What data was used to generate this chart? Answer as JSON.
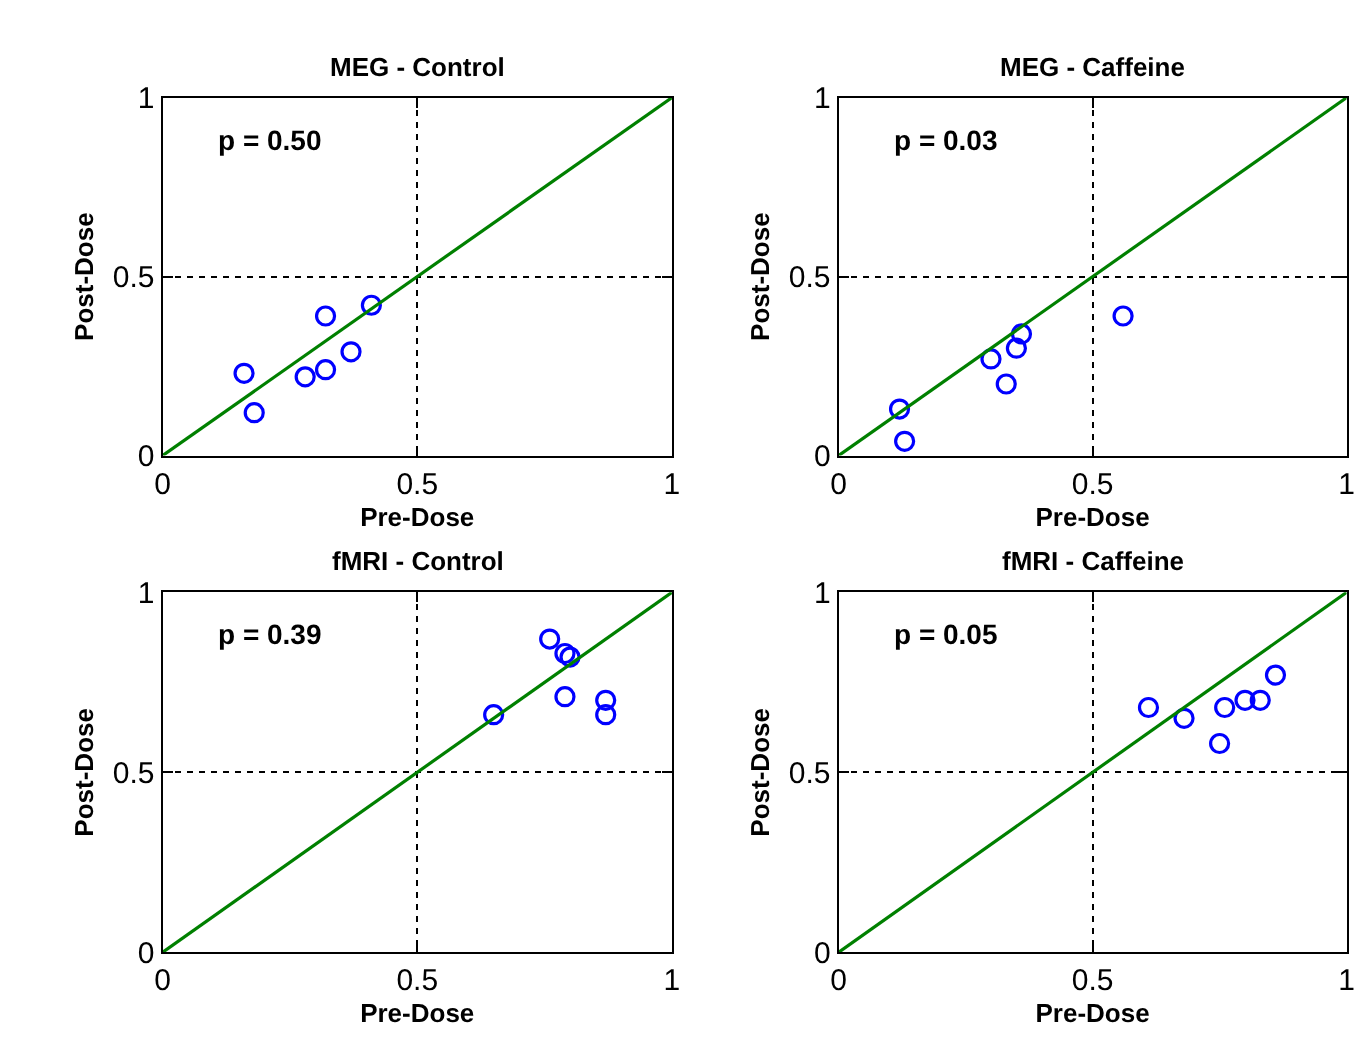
{
  "chart_data": [
    {
      "type": "scatter",
      "title": "MEG - Control",
      "xlabel": "Pre-Dose",
      "ylabel": "Post-Dose",
      "xlim": [
        0,
        1
      ],
      "ylim": [
        0,
        1
      ],
      "xticks": [
        0,
        0.5,
        1
      ],
      "yticks": [
        0,
        0.5,
        1
      ],
      "grid": true,
      "annotations": [
        "p = 0.50"
      ],
      "series": [
        {
          "marker": "circle",
          "color": "#0000ff",
          "x": [
            0.16,
            0.18,
            0.28,
            0.32,
            0.32,
            0.37,
            0.41
          ],
          "values": [
            0.23,
            0.12,
            0.22,
            0.24,
            0.39,
            0.29,
            0.42
          ]
        },
        {
          "type": "line",
          "color": "#008000",
          "x": [
            0,
            1
          ],
          "values": [
            0,
            1
          ]
        }
      ]
    },
    {
      "type": "scatter",
      "title": "MEG - Caffeine",
      "xlabel": "Pre-Dose",
      "ylabel": "Post-Dose",
      "xlim": [
        0,
        1
      ],
      "ylim": [
        0,
        1
      ],
      "xticks": [
        0,
        0.5,
        1
      ],
      "yticks": [
        0,
        0.5,
        1
      ],
      "grid": true,
      "annotations": [
        "p = 0.03"
      ],
      "series": [
        {
          "marker": "circle",
          "color": "#0000ff",
          "x": [
            0.12,
            0.13,
            0.3,
            0.33,
            0.35,
            0.36,
            0.56
          ],
          "values": [
            0.13,
            0.04,
            0.27,
            0.2,
            0.3,
            0.34,
            0.39
          ]
        },
        {
          "type": "line",
          "color": "#008000",
          "x": [
            0,
            1
          ],
          "values": [
            0,
            1
          ]
        }
      ]
    },
    {
      "type": "scatter",
      "title": "fMRI - Control",
      "xlabel": "Pre-Dose",
      "ylabel": "Post-Dose",
      "xlim": [
        0,
        1
      ],
      "ylim": [
        0,
        1
      ],
      "xticks": [
        0,
        0.5,
        1
      ],
      "yticks": [
        0,
        0.5,
        1
      ],
      "grid": true,
      "annotations": [
        "p = 0.39"
      ],
      "series": [
        {
          "marker": "circle",
          "color": "#0000ff",
          "x": [
            0.65,
            0.76,
            0.79,
            0.8,
            0.79,
            0.87,
            0.87
          ],
          "values": [
            0.66,
            0.87,
            0.83,
            0.82,
            0.71,
            0.7,
            0.66
          ]
        },
        {
          "type": "line",
          "color": "#008000",
          "x": [
            0,
            1
          ],
          "values": [
            0,
            1
          ]
        }
      ]
    },
    {
      "type": "scatter",
      "title": "fMRI - Caffeine",
      "xlabel": "Pre-Dose",
      "ylabel": "Post-Dose",
      "xlim": [
        0,
        1
      ],
      "ylim": [
        0,
        1
      ],
      "xticks": [
        0,
        0.5,
        1
      ],
      "yticks": [
        0,
        0.5,
        1
      ],
      "grid": true,
      "annotations": [
        "p = 0.05"
      ],
      "series": [
        {
          "marker": "circle",
          "color": "#0000ff",
          "x": [
            0.61,
            0.68,
            0.75,
            0.76,
            0.8,
            0.83,
            0.86
          ],
          "values": [
            0.68,
            0.65,
            0.58,
            0.68,
            0.7,
            0.7,
            0.77
          ]
        },
        {
          "type": "line",
          "color": "#008000",
          "x": [
            0,
            1
          ],
          "values": [
            0,
            1
          ]
        }
      ]
    }
  ]
}
